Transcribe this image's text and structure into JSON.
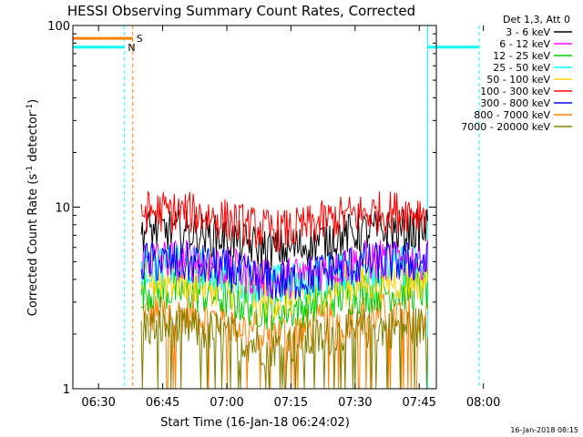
{
  "chart_data": {
    "type": "line",
    "title": "HESSI Observing Summary Count Rates, Corrected",
    "xlabel": "Start Time (16-Jan-18 06:24:02)",
    "ylabel_main": "Corrected Count Rate (s",
    "ylabel_sup1": "-1",
    "ylabel_mid": " detector",
    "ylabel_sup2": "-1",
    "ylabel_end": ")",
    "yscale": "log",
    "ylim": [
      1,
      100
    ],
    "xlim_minutes": [
      0,
      85
    ],
    "x_ticks": [
      "06:30",
      "06:45",
      "07:00",
      "07:15",
      "07:30",
      "07:45",
      "08:00"
    ],
    "y_ticks": [
      "1",
      "10",
      "100"
    ],
    "legend_header": "Det 1,3, Att 0",
    "legend_position": "right",
    "timestamp": "16-Jan-2018 08:15",
    "flag_labels": {
      "saa": "S",
      "night": "N"
    },
    "data_window": [
      "06:40",
      "07:47"
    ],
    "series": [
      {
        "name": "3 - 6 keV",
        "color": "#000000",
        "level": 7.5
      },
      {
        "name": "6 - 12 keV",
        "color": "#ff00ff",
        "level": 5.2
      },
      {
        "name": "12 - 25 keV",
        "color": "#00d000",
        "level": 3.5
      },
      {
        "name": "25 - 50 keV",
        "color": "#00ffff",
        "level": 4.8
      },
      {
        "name": "50 - 100 keV",
        "color": "#ffd000",
        "level": 4.0
      },
      {
        "name": "100 - 300 keV",
        "color": "#ff0000",
        "level": 9.5
      },
      {
        "name": "300 - 800 keV",
        "color": "#0000ff",
        "level": 5.0
      },
      {
        "name": "800 - 7000 keV",
        "color": "#ff8000",
        "level": 2.6
      },
      {
        "name": "7000 - 20000 keV",
        "color": "#808000",
        "level": 2.2
      }
    ],
    "flags": [
      {
        "label": "S",
        "color": "#ff8000",
        "level": 85,
        "segments": [
          [
            "06:24",
            "06:38"
          ]
        ]
      },
      {
        "label": "N",
        "color": "#00ffff",
        "level": 76,
        "segments": [
          [
            "06:24",
            "06:36"
          ],
          [
            "07:47",
            "07:59"
          ]
        ]
      }
    ],
    "markers": [
      {
        "time": "06:24",
        "color": "#00ffff",
        "style": "solid"
      },
      {
        "time": "06:36",
        "color": "#00ffff",
        "style": "dashed"
      },
      {
        "time": "06:38",
        "color": "#ff8000",
        "style": "dashed"
      },
      {
        "time": "07:47",
        "color": "#00ffff",
        "style": "solid"
      },
      {
        "time": "07:59",
        "color": "#00ffff",
        "style": "dashed"
      }
    ]
  }
}
